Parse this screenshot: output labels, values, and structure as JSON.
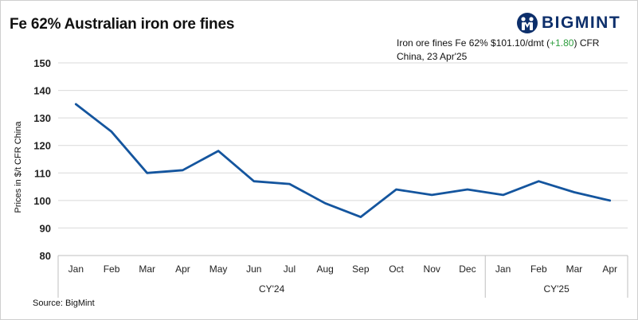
{
  "header": {
    "title": "Fe 62% Australian iron ore fines",
    "logo_text": "BIGMINT",
    "logo_color": "#0d2f6b"
  },
  "annotation": {
    "prefix": "Iron ore fines Fe 62% $101.10/dmt (",
    "change": "+1.80",
    "suffix": ") CFR China, 23 Apr'25",
    "change_color": "#2e9e3e"
  },
  "source": "Source: BigMint",
  "chart_data": {
    "type": "line",
    "title": "Fe 62% Australian iron ore fines",
    "ylabel": "Prices in $/t CFR China",
    "xlabel": "",
    "ylim": [
      80,
      150
    ],
    "yticks": [
      80,
      90,
      100,
      110,
      120,
      130,
      140,
      150
    ],
    "grid": true,
    "line_color": "#14559e",
    "categories": [
      "Jan",
      "Feb",
      "Mar",
      "Apr",
      "May",
      "Jun",
      "Jul",
      "Aug",
      "Sep",
      "Oct",
      "Nov",
      "Dec",
      "Jan",
      "Feb",
      "Mar",
      "Apr"
    ],
    "groups": [
      {
        "label": "CY'24",
        "count": 12
      },
      {
        "label": "CY'25",
        "count": 4
      }
    ],
    "series": [
      {
        "values": [
          135,
          125,
          110,
          111,
          118,
          107,
          106,
          99,
          94,
          104,
          102,
          104,
          102,
          107,
          103,
          100
        ]
      }
    ]
  }
}
